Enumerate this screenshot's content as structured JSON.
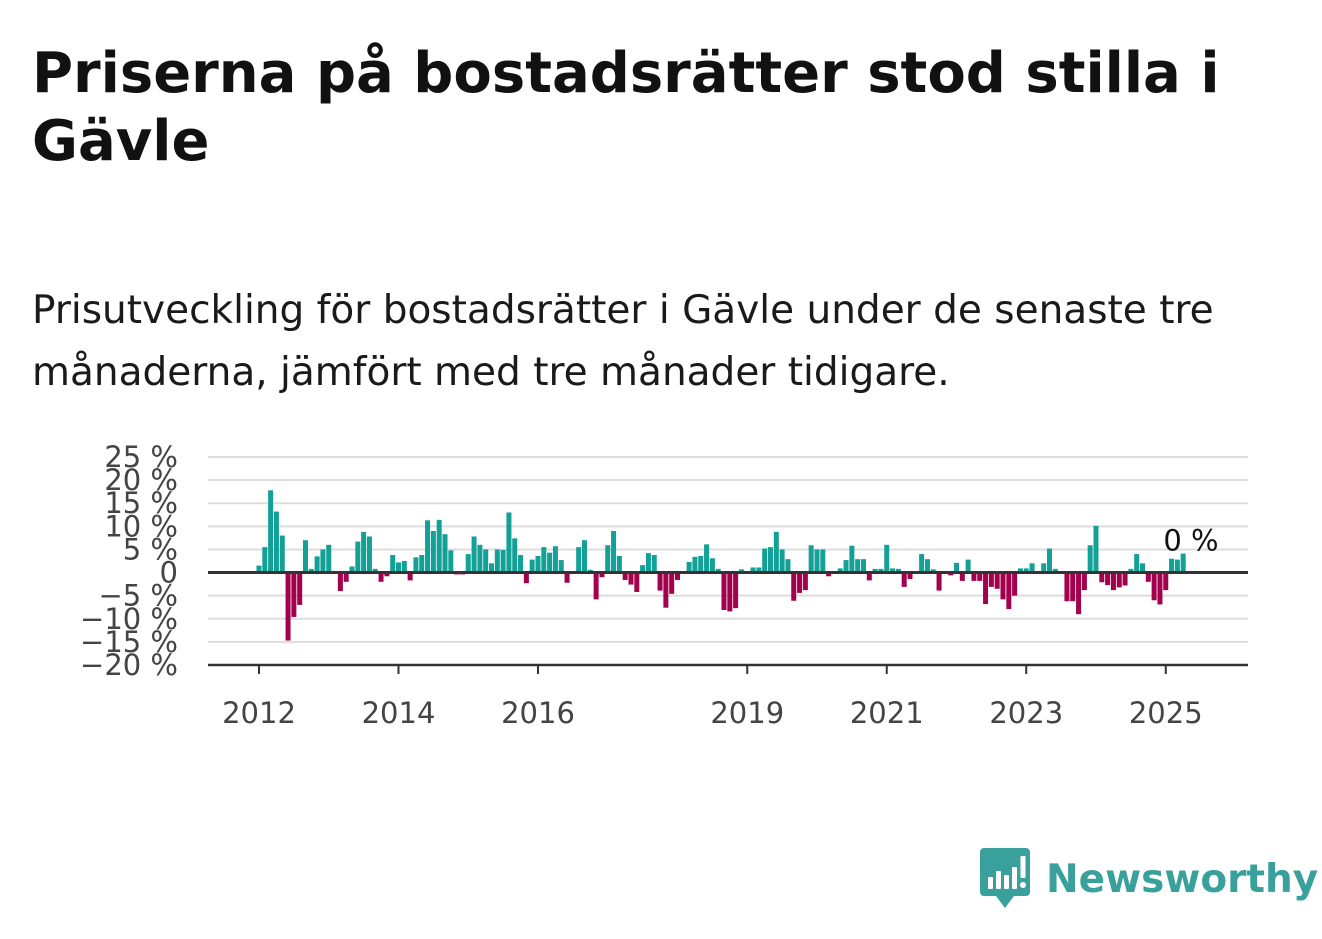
{
  "header": {
    "title": "Priserna på bostadsrätter stod stilla i Gävle",
    "subtitle": "Prisutveckling för bostadsrätter i Gävle under de senaste tre månaderna, jämfört med tre månader tidigare."
  },
  "brand": {
    "name": "Newsworthy",
    "icon": "newsworthy-logo-icon",
    "color": "#3aa09b"
  },
  "chart_data": {
    "type": "bar",
    "title": "",
    "xlabel": "",
    "ylabel": "",
    "ylim": [
      -20,
      25
    ],
    "yticks": [
      25,
      20,
      15,
      10,
      5,
      0,
      -5,
      -10,
      -15,
      -20
    ],
    "ytick_labels": [
      "25 %",
      "20 %",
      "15 %",
      "10 %",
      "5 %",
      "0",
      "−5 %",
      "−10 %",
      "−15 %",
      "−20 %"
    ],
    "xticks": [
      2012,
      2014,
      2016,
      2019,
      2021,
      2023,
      2025
    ],
    "xtick_labels": [
      "2012",
      "2014",
      "2016",
      "2019",
      "2021",
      "2023",
      "2025"
    ],
    "grid": true,
    "colors": {
      "positive": "#13a096",
      "negative": "#a3004e",
      "zero_line": "#333333",
      "grid": "#dddddd"
    },
    "annotation": {
      "text": "0 %",
      "date": "2025-05"
    },
    "series": [
      {
        "start": "2012-01",
        "frequency": "monthly",
        "values": [
          1.5,
          5.5,
          17.8,
          13.2,
          8.0,
          -14.7,
          -9.6,
          -7.0,
          7.0,
          0.8,
          3.5,
          5.0,
          6.0,
          0.2,
          -4.0,
          -2.0,
          1.3,
          6.7,
          8.8,
          7.8,
          0.8,
          -2.0,
          -0.8,
          3.8,
          2.2,
          2.5,
          -1.7,
          3.3,
          3.8,
          11.3,
          9.0,
          11.4,
          8.3,
          4.8,
          -0.4,
          -0.4,
          4.0,
          7.8,
          6.0,
          5.0,
          2.0,
          5.0,
          4.9,
          13.0,
          7.4,
          3.8,
          -2.3,
          2.8,
          3.6,
          5.5,
          4.3,
          5.7,
          2.7,
          -2.2,
          -0.2,
          5.5,
          7.0,
          0.6,
          -5.8,
          -1.0,
          5.9,
          9.0,
          3.6,
          -1.6,
          -2.6,
          -4.2,
          1.6,
          4.2,
          3.8,
          -3.9,
          -7.6,
          -4.6,
          -1.6,
          0.1,
          2.3,
          3.4,
          3.6,
          6.1,
          3.1,
          0.8,
          -8.1,
          -8.4,
          -7.7,
          0.7,
          0.3,
          1.1,
          1.1,
          5.2,
          5.5,
          8.8,
          5.0,
          2.9,
          -6.1,
          -4.4,
          -3.8,
          5.9,
          5.0,
          5.0,
          -0.8,
          0.1,
          0.9,
          2.7,
          5.8,
          2.9,
          2.9,
          -1.7,
          0.8,
          0.8,
          6.0,
          0.9,
          0.8,
          -3.1,
          -1.4,
          0.2,
          4.0,
          2.9,
          0.7,
          -3.9,
          -0.2,
          -0.6,
          2.1,
          -1.8,
          2.8,
          -1.8,
          -1.8,
          -6.8,
          -3.1,
          -3.5,
          -5.8,
          -7.9,
          -5.0,
          0.9,
          0.9,
          2.0,
          0.1,
          2.0,
          5.2,
          0.8,
          0.1,
          -6.2,
          -6.2,
          -9.0,
          -3.8,
          5.9,
          10.1,
          -2.1,
          -2.7,
          -3.8,
          -3.2,
          -2.8,
          0.8,
          4.0,
          2.0,
          -2.0,
          -6.0,
          -6.9,
          -3.8,
          3.0,
          2.8,
          4.1
        ]
      }
    ]
  }
}
